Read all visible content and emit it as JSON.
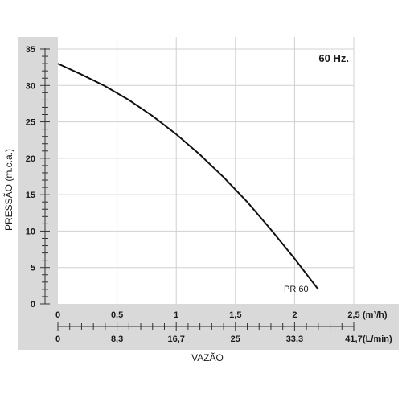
{
  "chart_data": {
    "type": "line",
    "annotation": "60 Hz.",
    "ylabel": "PRESSÃO (m.c.a.)",
    "xlabel": "VAZÃO",
    "x_unit": "(m³/h)",
    "x2_unit": "(L/min)",
    "xlim": [
      0,
      2.5
    ],
    "ylim": [
      0,
      35
    ],
    "grid": true,
    "x_ticks": [
      "0",
      "0,5",
      "1",
      "1,5",
      "2",
      "2,5"
    ],
    "x2_ticks": [
      "0",
      "8,3",
      "16,7",
      "25",
      "33,3",
      "41,7"
    ],
    "y_ticks": [
      "0",
      "5",
      "10",
      "15",
      "20",
      "25",
      "30",
      "35"
    ],
    "series": [
      {
        "name": "PR 60",
        "x": [
          0,
          0.2,
          0.4,
          0.6,
          0.8,
          1.0,
          1.2,
          1.4,
          1.6,
          1.8,
          2.0,
          2.2
        ],
        "y": [
          33,
          31.5,
          29.9,
          28.0,
          25.8,
          23.3,
          20.5,
          17.4,
          14.0,
          10.2,
          6.2,
          2.0
        ]
      }
    ]
  },
  "colors": {
    "panel": "#d9d9d9",
    "plot_bg": "#ffffff",
    "grid": "#d0d0d0",
    "curve": "#111111"
  }
}
